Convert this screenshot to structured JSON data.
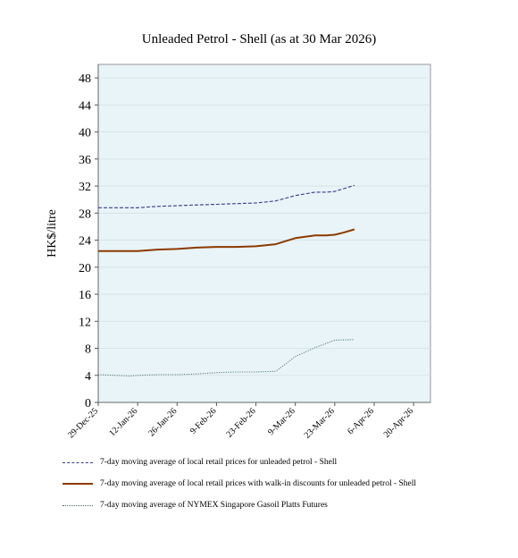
{
  "chart_data": {
    "type": "line",
    "title": "Unleaded Petrol - Shell (as at 30 Mar 2026)",
    "xlabel": "",
    "ylabel": "HK$/litre",
    "ylim": [
      0,
      50
    ],
    "yticks": [
      0,
      4,
      8,
      12,
      16,
      20,
      24,
      28,
      32,
      36,
      40,
      44,
      48
    ],
    "xlim": [
      "2025-12-29",
      "2026-04-26"
    ],
    "xticks": [
      "2025-12-29",
      "2026-01-12",
      "2026-01-26",
      "2026-02-09",
      "2026-02-23",
      "2026-03-09",
      "2026-03-23",
      "2026-04-06",
      "2026-04-20"
    ],
    "xtick_labels": [
      "29-Dec-25",
      "12-Jan-26",
      "26-Jan-26",
      "9-Feb-26",
      "23-Feb-26",
      "9-Mar-26",
      "23-Mar-26",
      "6-Apr-26",
      "20-Apr-26"
    ],
    "grid": true,
    "legend_position": "bottom",
    "plot_background": "#e8f4f8",
    "series": [
      {
        "name": "7-day moving average of local retail prices for unleaded petrol - Shell",
        "color": "#3a3a8c",
        "style": "dashed",
        "points": [
          [
            "2025-12-29",
            28.8
          ],
          [
            "2026-01-05",
            28.8
          ],
          [
            "2026-01-12",
            28.8
          ],
          [
            "2026-01-19",
            29.0
          ],
          [
            "2026-01-26",
            29.1
          ],
          [
            "2026-02-02",
            29.2
          ],
          [
            "2026-02-09",
            29.3
          ],
          [
            "2026-02-16",
            29.4
          ],
          [
            "2026-02-23",
            29.5
          ],
          [
            "2026-03-02",
            29.8
          ],
          [
            "2026-03-09",
            30.6
          ],
          [
            "2026-03-16",
            31.1
          ],
          [
            "2026-03-20",
            31.1
          ],
          [
            "2026-03-23",
            31.2
          ],
          [
            "2026-03-26",
            31.6
          ],
          [
            "2026-03-30",
            32.1
          ]
        ]
      },
      {
        "name": "7-day moving average of local retail prices with walk-in discounts for unleaded petrol - Shell",
        "color": "#8b3a00",
        "style": "solid",
        "points": [
          [
            "2025-12-29",
            22.4
          ],
          [
            "2026-01-05",
            22.4
          ],
          [
            "2026-01-12",
            22.4
          ],
          [
            "2026-01-19",
            22.6
          ],
          [
            "2026-01-26",
            22.7
          ],
          [
            "2026-02-02",
            22.9
          ],
          [
            "2026-02-09",
            23.0
          ],
          [
            "2026-02-16",
            23.0
          ],
          [
            "2026-02-23",
            23.1
          ],
          [
            "2026-03-02",
            23.4
          ],
          [
            "2026-03-09",
            24.3
          ],
          [
            "2026-03-16",
            24.7
          ],
          [
            "2026-03-20",
            24.7
          ],
          [
            "2026-03-23",
            24.8
          ],
          [
            "2026-03-26",
            25.1
          ],
          [
            "2026-03-30",
            25.6
          ]
        ]
      },
      {
        "name": "7-day moving average of NYMEX Singapore Gasoil Platts Futures",
        "color": "#4a6a6a",
        "style": "dotted",
        "points": [
          [
            "2025-12-29",
            4.1
          ],
          [
            "2026-01-05",
            4.0
          ],
          [
            "2026-01-09",
            3.9
          ],
          [
            "2026-01-12",
            4.0
          ],
          [
            "2026-01-19",
            4.1
          ],
          [
            "2026-01-26",
            4.1
          ],
          [
            "2026-02-02",
            4.2
          ],
          [
            "2026-02-09",
            4.4
          ],
          [
            "2026-02-16",
            4.5
          ],
          [
            "2026-02-23",
            4.5
          ],
          [
            "2026-03-02",
            4.6
          ],
          [
            "2026-03-05",
            5.5
          ],
          [
            "2026-03-09",
            6.8
          ],
          [
            "2026-03-16",
            8.1
          ],
          [
            "2026-03-23",
            9.2
          ],
          [
            "2026-03-30",
            9.3
          ]
        ]
      }
    ]
  }
}
